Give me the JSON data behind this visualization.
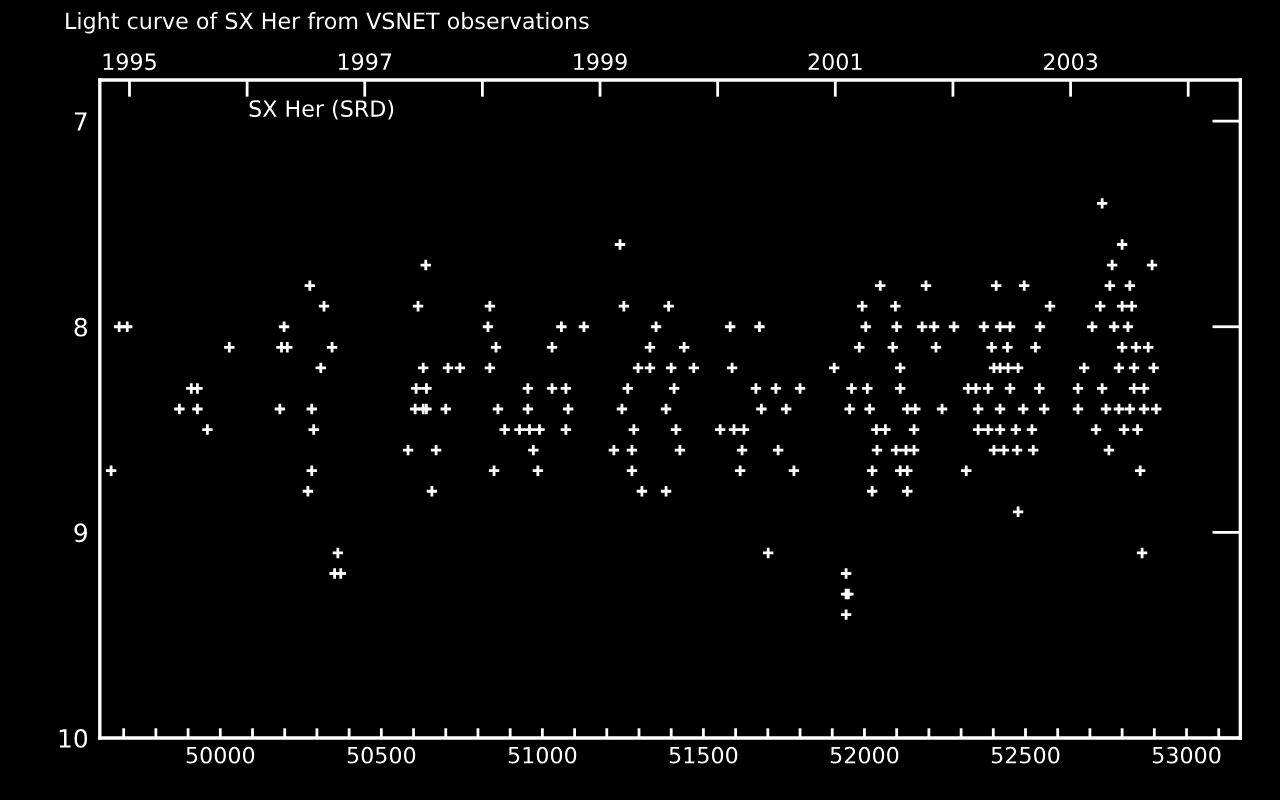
{
  "chart_data": {
    "type": "scatter",
    "title": "Light curve of SX Her from VSNET observations",
    "annotations": [
      "SX Her (SRD)"
    ],
    "xlim": [
      49626,
      53167
    ],
    "ylim": [
      10,
      6.8
    ],
    "xticks": [
      {
        "value": 49700,
        "label": null
      },
      {
        "value": 49800,
        "label": null
      },
      {
        "value": 49900,
        "label": null
      },
      50000,
      {
        "value": 50100,
        "label": null
      },
      {
        "value": 50200,
        "label": null
      },
      {
        "value": 50300,
        "label": null
      },
      {
        "value": 50400,
        "label": null
      },
      50500,
      {
        "value": 50600,
        "label": null
      },
      {
        "value": 50700,
        "label": null
      },
      {
        "value": 50800,
        "label": null
      },
      {
        "value": 50900,
        "label": null
      },
      51000,
      {
        "value": 51100,
        "label": null
      },
      {
        "value": 51200,
        "label": null
      },
      {
        "value": 51300,
        "label": null
      },
      {
        "value": 51400,
        "label": null
      },
      51500,
      {
        "value": 51600,
        "label": null
      },
      {
        "value": 51700,
        "label": null
      },
      {
        "value": 51800,
        "label": null
      },
      {
        "value": 51900,
        "label": null
      },
      52000,
      {
        "value": 52100,
        "label": null
      },
      {
        "value": 52200,
        "label": null
      },
      {
        "value": 52300,
        "label": null
      },
      {
        "value": 52400,
        "label": null
      },
      52500,
      {
        "value": 52600,
        "label": null
      },
      {
        "value": 52700,
        "label": null
      },
      {
        "value": 52800,
        "label": null
      },
      {
        "value": 52900,
        "label": null
      },
      53000,
      {
        "value": 53100,
        "label": null
      }
    ],
    "yticks": [
      7,
      8,
      9,
      10
    ],
    "x2lim": [
      1994.748,
      2004.443
    ],
    "x2ticks": [
      1995,
      {
        "value": 1996,
        "label": null
      },
      1997,
      {
        "value": 1998,
        "label": null
      },
      1999,
      {
        "value": 2000,
        "label": null
      },
      2001,
      {
        "value": 2002,
        "label": null
      },
      2003,
      {
        "value": 2004,
        "label": null
      }
    ],
    "grid": false,
    "legend": false,
    "marker": "cross",
    "series": [
      {
        "color": "#ffffff",
        "x": [
          49661,
          49686,
          49711,
          49873,
          49910,
          49929,
          49929,
          49960,
          50028,
          50185,
          50190,
          50208,
          50198,
          50278,
          50284,
          50284,
          50290,
          50272,
          50312,
          50322,
          50347,
          50365,
          50355,
          50374,
          50583,
          50614,
          50608,
          50638,
          50630,
          50640,
          50605,
          50630,
          50640,
          50670,
          50657,
          50700,
          50707,
          50744,
          50837,
          50831,
          50837,
          50856,
          50862,
          50850,
          50883,
          50929,
          50960,
          50991,
          50955,
          50955,
          50972,
          50986,
          51030,
          51030,
          51059,
          51073,
          51080,
          51073,
          51129,
          51241,
          51253,
          51222,
          51247,
          51265,
          51284,
          51278,
          51278,
          51309,
          51334,
          51353,
          51297,
          51334,
          51392,
          51440,
          51400,
          51470,
          51409,
          51384,
          51415,
          51427,
          51384,
          51583,
          51589,
          51674,
          51663,
          51680,
          51552,
          51595,
          51626,
          51620,
          51614,
          51701,
          51725,
          51757,
          51732,
          51781,
          51800,
          51906,
          51943,
          51943,
          51943,
          51950,
          51993,
          52049,
          52096,
          52004,
          52100,
          51984,
          52088,
          52111,
          51960,
          52009,
          52111,
          51954,
          52016,
          52133,
          52158,
          52037,
          52065,
          52154,
          52039,
          52098,
          52129,
          52154,
          52024,
          52111,
          52133,
          52024,
          52133,
          52191,
          52179,
          52216,
          52222,
          52241,
          52278,
          52316,
          52409,
          52496,
          52371,
          52421,
          52452,
          52545,
          52576,
          52395,
          52444,
          52531,
          52402,
          52421,
          52446,
          52477,
          52322,
          52346,
          52384,
          52452,
          52543,
          52353,
          52421,
          52493,
          52558,
          52353,
          52384,
          52421,
          52470,
          52520,
          52402,
          52433,
          52474,
          52524,
          52477,
          52738,
          52800,
          52769,
          52893,
          52762,
          52824,
          52732,
          52800,
          52830,
          52707,
          52775,
          52818,
          52800,
          52843,
          52881,
          52682,
          52790,
          52837,
          52898,
          52663,
          52738,
          52837,
          52868,
          52663,
          52750,
          52790,
          52824,
          52868,
          52906,
          52719,
          52806,
          52848,
          52759,
          52856,
          52862
        ],
        "values": [
          8.7,
          8.0,
          8.0,
          8.4,
          8.3,
          8.3,
          8.4,
          8.5,
          8.1,
          8.4,
          8.1,
          8.1,
          8.0,
          7.8,
          8.4,
          8.7,
          8.5,
          8.8,
          8.2,
          7.9,
          8.1,
          9.1,
          9.2,
          9.2,
          8.6,
          7.9,
          8.3,
          7.7,
          8.2,
          8.3,
          8.4,
          8.4,
          8.4,
          8.6,
          8.8,
          8.4,
          8.2,
          8.2,
          7.9,
          8.0,
          8.2,
          8.1,
          8.4,
          8.7,
          8.5,
          8.5,
          8.5,
          8.5,
          8.3,
          8.4,
          8.6,
          8.7,
          8.1,
          8.3,
          8.0,
          8.3,
          8.4,
          8.5,
          8.0,
          7.6,
          7.9,
          8.6,
          8.4,
          8.3,
          8.5,
          8.6,
          8.7,
          8.8,
          8.1,
          8.0,
          8.2,
          8.2,
          7.9,
          8.1,
          8.2,
          8.2,
          8.3,
          8.4,
          8.5,
          8.6,
          8.8,
          8.0,
          8.2,
          8.0,
          8.3,
          8.4,
          8.5,
          8.5,
          8.5,
          8.6,
          8.7,
          9.1,
          8.3,
          8.4,
          8.6,
          8.7,
          8.3,
          8.2,
          9.2,
          9.3,
          9.4,
          9.3,
          7.9,
          7.8,
          7.9,
          8.0,
          8.0,
          8.1,
          8.1,
          8.2,
          8.3,
          8.3,
          8.3,
          8.4,
          8.4,
          8.4,
          8.4,
          8.5,
          8.5,
          8.5,
          8.6,
          8.6,
          8.6,
          8.6,
          8.7,
          8.7,
          8.7,
          8.8,
          8.8,
          7.8,
          8.0,
          8.0,
          8.1,
          8.4,
          8.0,
          8.7,
          7.8,
          7.8,
          8.0,
          8.0,
          8.0,
          8.0,
          7.9,
          8.1,
          8.1,
          8.1,
          8.2,
          8.2,
          8.2,
          8.2,
          8.3,
          8.3,
          8.3,
          8.3,
          8.3,
          8.4,
          8.4,
          8.4,
          8.4,
          8.5,
          8.5,
          8.5,
          8.5,
          8.5,
          8.6,
          8.6,
          8.6,
          8.6,
          8.9,
          7.4,
          7.6,
          7.7,
          7.7,
          7.8,
          7.8,
          7.9,
          7.9,
          7.9,
          8.0,
          8.0,
          8.0,
          8.1,
          8.1,
          8.1,
          8.2,
          8.2,
          8.2,
          8.2,
          8.3,
          8.3,
          8.3,
          8.3,
          8.4,
          8.4,
          8.4,
          8.4,
          8.4,
          8.4,
          8.5,
          8.5,
          8.5,
          8.6,
          8.7,
          9.1
        ]
      }
    ]
  }
}
